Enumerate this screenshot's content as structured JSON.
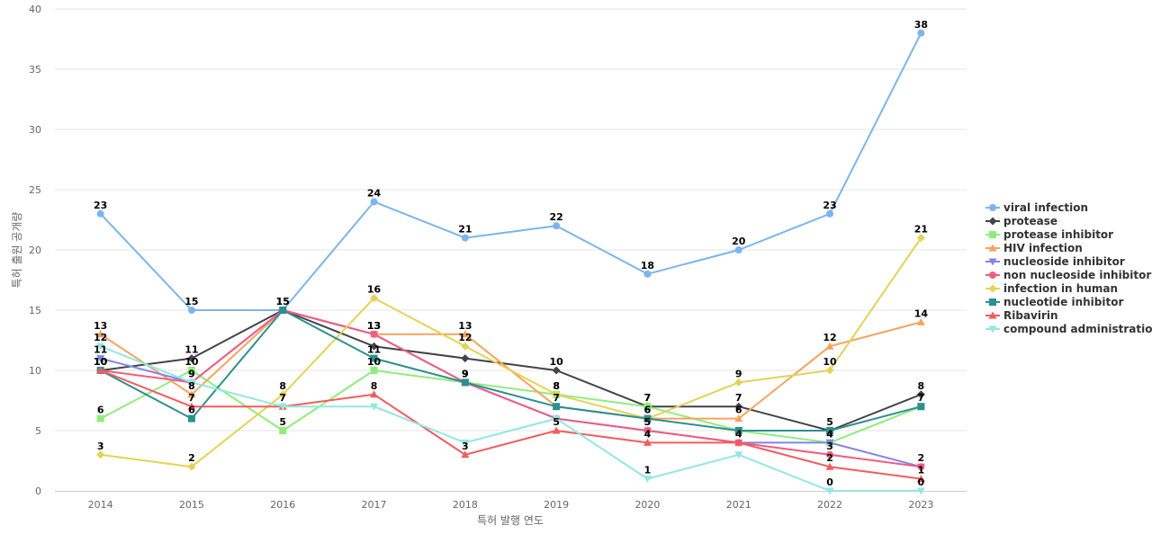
{
  "chart_data": {
    "type": "line",
    "title": "",
    "xlabel": "특허 발행 연도",
    "ylabel": "특허 출원 공개량",
    "categories": [
      "2014",
      "2015",
      "2016",
      "2017",
      "2018",
      "2019",
      "2020",
      "2021",
      "2022",
      "2023"
    ],
    "ylim": [
      0,
      40
    ],
    "yticks": [
      0,
      5,
      10,
      15,
      20,
      25,
      30,
      35,
      40
    ],
    "grid": true,
    "legend_position": "right",
    "series": [
      {
        "name": "viral infection",
        "color": "#7cb5ec",
        "marker": "circle",
        "values": [
          23,
          15,
          15,
          24,
          21,
          22,
          18,
          20,
          23,
          38
        ]
      },
      {
        "name": "protease",
        "color": "#434348",
        "marker": "diamond",
        "values": [
          10,
          11,
          15,
          12,
          11,
          10,
          7,
          7,
          5,
          8
        ]
      },
      {
        "name": "protease inhibitor",
        "color": "#90ed7d",
        "marker": "square",
        "values": [
          6,
          10,
          5,
          10,
          9,
          8,
          7,
          5,
          4,
          7
        ]
      },
      {
        "name": "HIV infection",
        "color": "#f7a35c",
        "marker": "triangle",
        "values": [
          13,
          8,
          15,
          13,
          13,
          7,
          6,
          6,
          12,
          14
        ]
      },
      {
        "name": "nucleoside inhibitor",
        "color": "#8085e9",
        "marker": "triangle-down",
        "values": [
          11,
          9,
          15,
          13,
          9,
          6,
          5,
          4,
          4,
          2
        ]
      },
      {
        "name": "non nucleoside inhibitor",
        "color": "#f15c80",
        "marker": "circle",
        "values": [
          10,
          9,
          15,
          13,
          9,
          6,
          5,
          4,
          3,
          2
        ]
      },
      {
        "name": "infection in human",
        "color": "#e4d354",
        "marker": "diamond",
        "values": [
          3,
          2,
          8,
          16,
          12,
          8,
          6,
          9,
          10,
          21
        ]
      },
      {
        "name": "nucleotide inhibitor",
        "color": "#2b908f",
        "marker": "square",
        "values": [
          10,
          6,
          15,
          11,
          9,
          7,
          6,
          5,
          5,
          7
        ]
      },
      {
        "name": "Ribavirin",
        "color": "#f45b5b",
        "marker": "triangle",
        "values": [
          10,
          7,
          7,
          8,
          3,
          5,
          4,
          4,
          2,
          1
        ]
      },
      {
        "name": "compound administration",
        "color": "#91e8e1",
        "marker": "triangle-down",
        "values": [
          12,
          9,
          7,
          7,
          4,
          6,
          1,
          3,
          0,
          0
        ]
      }
    ],
    "data_labels": [
      {
        "series": "viral infection",
        "points": [
          0,
          1,
          2,
          3,
          4,
          5,
          6,
          7,
          8,
          9
        ]
      },
      {
        "series": "protease",
        "points": [
          1,
          5,
          6,
          7,
          9
        ]
      },
      {
        "series": "protease inhibitor",
        "points": [
          0,
          1,
          2,
          3,
          5,
          6,
          8,
          9
        ]
      },
      {
        "series": "HIV infection",
        "points": [
          0,
          1,
          2,
          3,
          4,
          7,
          8,
          9
        ]
      },
      {
        "series": "nucleoside inhibitor",
        "points": [
          0,
          1,
          3,
          4,
          6,
          8
        ]
      },
      {
        "series": "non nucleoside inhibitor",
        "points": [
          0,
          1,
          3,
          4,
          6,
          8,
          9
        ]
      },
      {
        "series": "infection in human",
        "points": [
          0,
          1,
          2,
          3,
          4,
          5,
          6,
          7,
          8,
          9
        ]
      },
      {
        "series": "nucleotide inhibitor",
        "points": [
          0,
          1,
          3,
          4,
          5,
          6,
          8
        ]
      },
      {
        "series": "Ribavirin",
        "points": [
          0,
          1,
          2,
          3,
          4,
          5,
          6,
          7,
          8,
          9
        ]
      },
      {
        "series": "compound administration",
        "points": [
          0,
          6,
          8,
          9
        ]
      }
    ]
  }
}
